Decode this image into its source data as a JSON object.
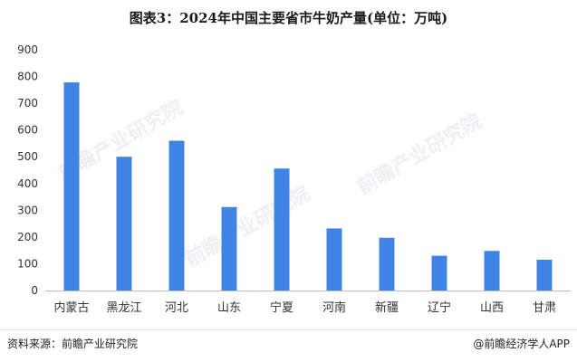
{
  "title": "图表3：2024年中国主要省市牛奶产量(单位：万吨)",
  "source": "资料来源：前瞻产业研究院",
  "brand": "@前瞻经济学人APP",
  "watermark": "前瞻产业研究院",
  "colors": {
    "bar": "#3f84e5",
    "axis": "#bdbdbd",
    "tick": "#333333"
  },
  "chart_data": {
    "type": "bar",
    "categories": [
      "内蒙古",
      "黑龙江",
      "河北",
      "山东",
      "宁夏",
      "河南",
      "新疆",
      "辽宁",
      "山西",
      "甘肃"
    ],
    "values": [
      778,
      500,
      560,
      312,
      456,
      232,
      197,
      130,
      148,
      115
    ],
    "yticks": [
      0,
      100,
      200,
      300,
      400,
      500,
      600,
      700,
      800,
      900
    ],
    "ylim": [
      0,
      900
    ],
    "xlabel": "",
    "ylabel": "",
    "grid": false,
    "legend": "none"
  }
}
